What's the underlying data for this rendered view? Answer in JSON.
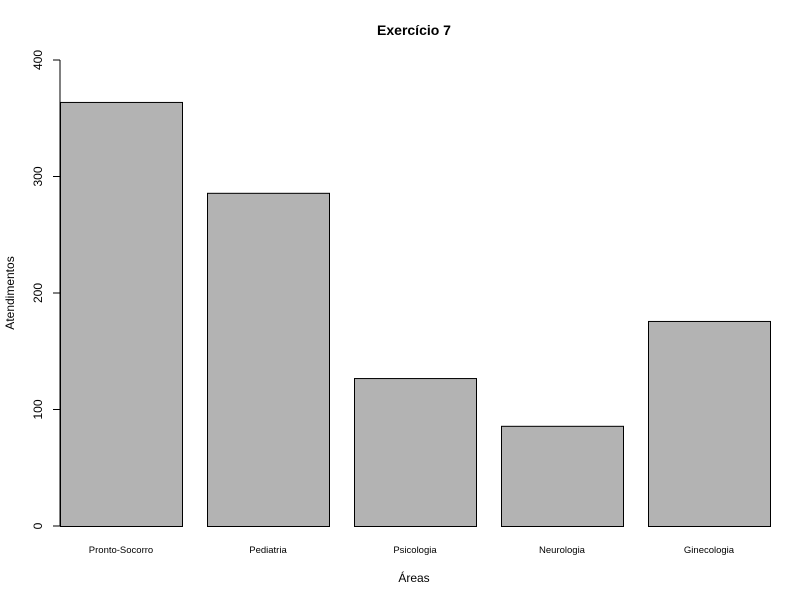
{
  "chart_data": {
    "type": "bar",
    "title": "Exercício 7",
    "xlabel": "Áreas",
    "ylabel": "Atendimentos",
    "categories": [
      "Pronto-Socorro",
      "Pediatria",
      "Psicologia",
      "Neurologia",
      "Ginecologia"
    ],
    "values": [
      364,
      286,
      127,
      86,
      176
    ],
    "ylim": [
      0,
      400
    ],
    "yticks": [
      0,
      100,
      200,
      300,
      400
    ],
    "grid": false,
    "bar_color": "#b3b3b3",
    "bar_border_color": "#000000"
  }
}
